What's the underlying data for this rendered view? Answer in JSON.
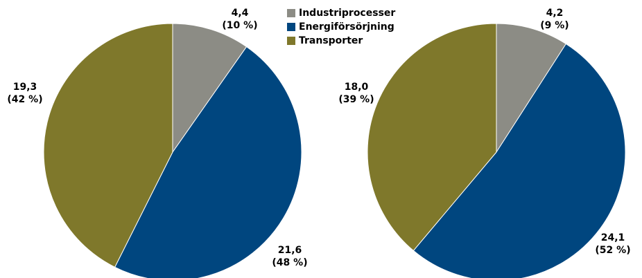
{
  "legend": {
    "items": [
      "Industriprocesser",
      "Energiförsörjning",
      "Transporter"
    ],
    "colors": [
      "#8c8c85",
      "#00467f",
      "#7f782b"
    ]
  },
  "chart_data": [
    {
      "type": "pie",
      "values": [
        4.4,
        21.6,
        19.3
      ],
      "value_labels": [
        "4,4",
        "21,6",
        "19,3"
      ],
      "percent_labels": [
        "(10 %)",
        "(48 %)",
        "(42 %)"
      ]
    },
    {
      "type": "pie",
      "values": [
        4.2,
        24.1,
        18.0
      ],
      "value_labels": [
        "4,2",
        "24,1",
        "18,0"
      ],
      "percent_labels": [
        "(9 %)",
        "(52 %)",
        "(39 %)"
      ]
    }
  ]
}
